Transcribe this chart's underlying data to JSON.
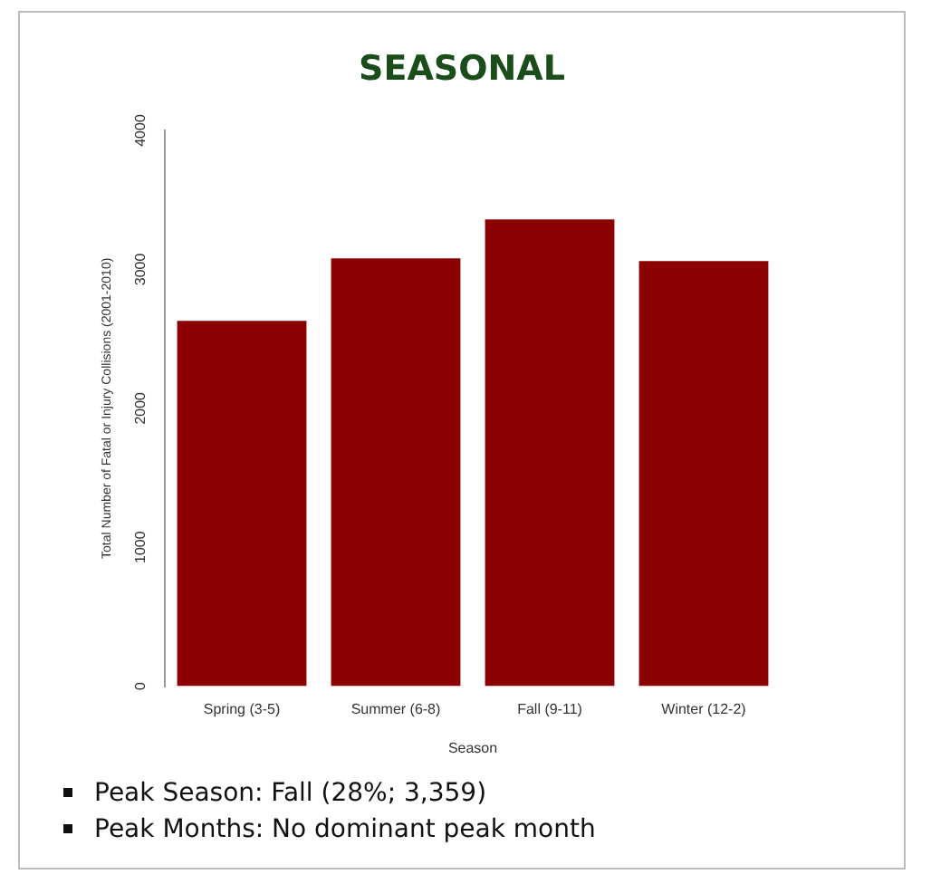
{
  "chart_data": {
    "type": "bar",
    "title": "SEASONAL",
    "xlabel": "Season",
    "ylabel": "Total Number of Fatal or Injury Collisions (2001-2010)",
    "categories": [
      "Spring (3-5)",
      "Summer (6-8)",
      "Fall (9-11)",
      "Winter (12-2)"
    ],
    "values": [
      2630,
      3080,
      3359,
      3060
    ],
    "color": "#8b0000",
    "ylim": [
      0,
      4000
    ],
    "yticks": [
      0,
      1000,
      2000,
      3000,
      4000
    ],
    "grid": false,
    "legend": false,
    "annotations": [
      "Peak Season: Fall (28%; 3,359)",
      "Peak Months: No dominant peak month"
    ]
  }
}
